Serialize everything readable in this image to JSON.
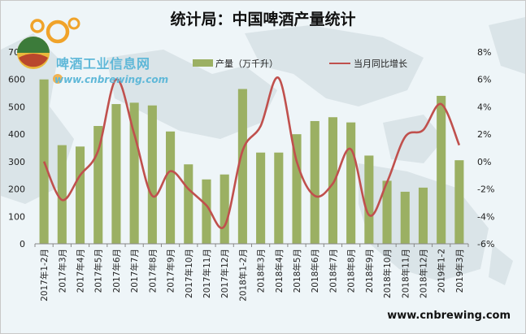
{
  "title": "统计局：中国啤酒产量统计",
  "logo": {
    "name": "啤酒工业信息网",
    "url": "www.cnbrewing.com"
  },
  "footer": "www.cnbrewing.com",
  "colors": {
    "bar": "#9bb063",
    "line": "#c0504d",
    "background": "#eef5f8",
    "map": "#cad6da"
  },
  "chart_data": {
    "type": "bar+line",
    "categories": [
      "2017年1-2月",
      "2017年3月",
      "2017年4月",
      "2017年5月",
      "2017年6月",
      "2017年7月",
      "2017年8月",
      "2017年9月",
      "2017年10月",
      "2017年11月",
      "2017年12月",
      "2018年1-2月",
      "2018年3月",
      "2018年4月",
      "2018年5月",
      "2018年6月",
      "2018年7月",
      "2018年8月",
      "2018年9月",
      "2018年10月",
      "2018年11月",
      "2018年12月",
      "2019年1-2",
      "2019年3月"
    ],
    "series": [
      {
        "name": "产量（万千升）",
        "type": "bar",
        "axis": "left",
        "values": [
          600,
          360,
          355,
          430,
          510,
          515,
          505,
          410,
          290,
          235,
          253,
          565,
          333,
          333,
          400,
          448,
          462,
          443,
          322,
          230,
          190,
          205,
          540,
          305
        ]
      },
      {
        "name": "当月同比增长",
        "type": "line",
        "axis": "right",
        "values": [
          0.0,
          -2.8,
          -1.0,
          0.8,
          6.0,
          2.0,
          -2.5,
          -0.7,
          -2.0,
          -3.2,
          -4.7,
          0.8,
          2.6,
          6.1,
          0.0,
          -2.5,
          -1.6,
          0.9,
          -3.9,
          -1.5,
          1.8,
          2.3,
          4.2,
          1.2
        ]
      }
    ],
    "y_left": {
      "min": 0,
      "max": 700,
      "ticks": [
        "0",
        "100",
        "200",
        "300",
        "400",
        "500",
        "600",
        "700"
      ]
    },
    "y_right": {
      "min": -6,
      "max": 8,
      "ticks": [
        "-6%",
        "-4%",
        "-2%",
        "0%",
        "2%",
        "4%",
        "6%",
        "8%"
      ]
    },
    "legend_position": "top",
    "grid": false
  }
}
